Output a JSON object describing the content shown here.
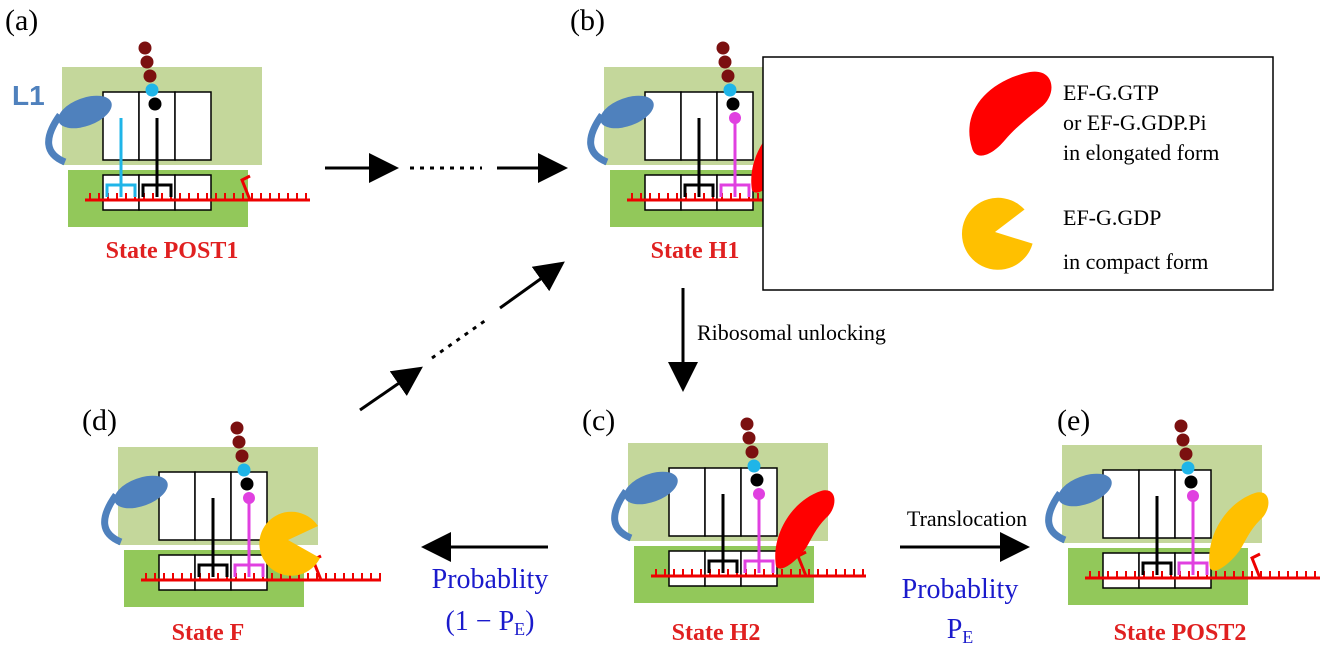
{
  "panels": [
    {
      "label": "(a)",
      "state": "State POST1"
    },
    {
      "label": "(b)",
      "state": "State H1"
    },
    {
      "label": "(c)",
      "state": "State H2"
    },
    {
      "label": "(d)",
      "state": "State F"
    },
    {
      "label": "(e)",
      "state": "State POST2"
    }
  ],
  "l1": "L1",
  "legend": {
    "elongated": [
      "EF-G.GTP",
      "or EF-G.GDP.Pi",
      "in elongated form"
    ],
    "compact": [
      "EF-G.GDP",
      "in  compact form"
    ]
  },
  "transitions": {
    "unlocking": "Ribosomal unlocking",
    "translocation": "Translocation",
    "prob_e": {
      "text": "Probablity",
      "symbol": "P",
      "sub": "E"
    },
    "prob_f": {
      "text": "Probablity",
      "prefix": "(1 − P",
      "sub": "E",
      "suffix": ")"
    }
  }
}
